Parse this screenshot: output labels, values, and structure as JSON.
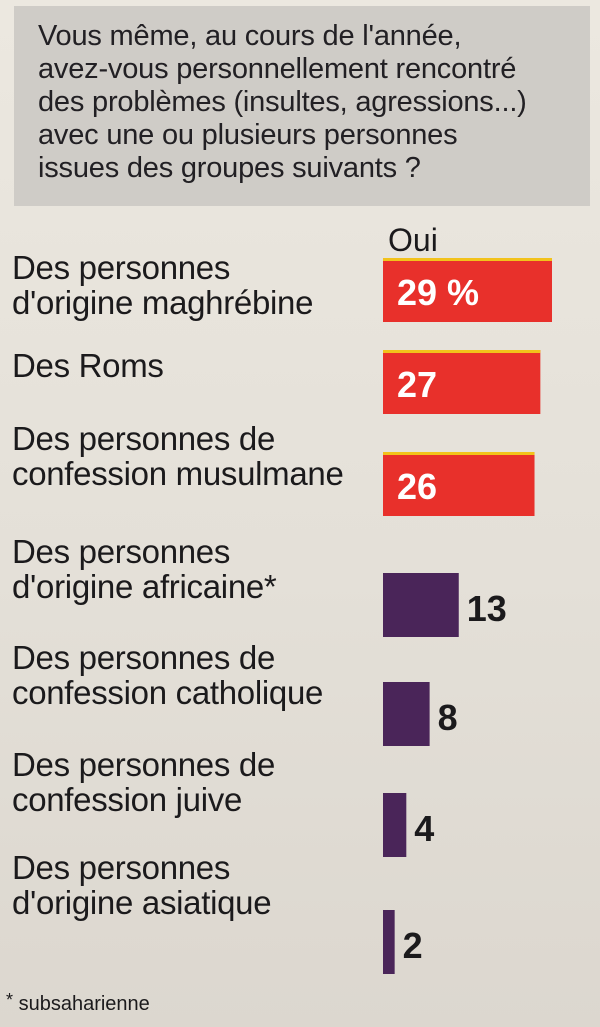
{
  "question": {
    "lines": [
      "Vous même, au cours de l'année,",
      "avez-vous personnellement rencontré",
      "des problèmes (insultes, agressions...)",
      "avec une ou plusieurs personnes",
      "issues des groupes suivants ?"
    ]
  },
  "colors": {
    "highlight_bar": "#e8302b",
    "highlight_border": "#f2c21b",
    "regular_bar": "#4a2559",
    "highlight_text": "#ffffff",
    "regular_text": "#1b1a1c"
  },
  "chart_data": {
    "type": "bar",
    "orientation": "horizontal",
    "series_label": "Oui",
    "categories": [
      [
        "Des personnes",
        "d'origine maghrébine"
      ],
      [
        "Des Roms"
      ],
      [
        "Des personnes de",
        "confession musulmane"
      ],
      [
        "Des personnes",
        "d'origine africaine*"
      ],
      [
        "Des personnes de",
        "confession catholique"
      ],
      [
        "Des personnes de",
        "confession juive"
      ],
      [
        "Des personnes",
        "d'origine asiatique"
      ]
    ],
    "values": [
      29,
      27,
      26,
      13,
      8,
      4,
      2
    ],
    "value_labels": [
      "29 %",
      "27",
      "26",
      "13",
      "8",
      "4",
      "2"
    ],
    "highlighted": [
      true,
      true,
      true,
      false,
      false,
      false,
      false
    ],
    "xlim": [
      0,
      29
    ]
  },
  "footnote": {
    "marker": "*",
    "text": "subsaharienne"
  }
}
